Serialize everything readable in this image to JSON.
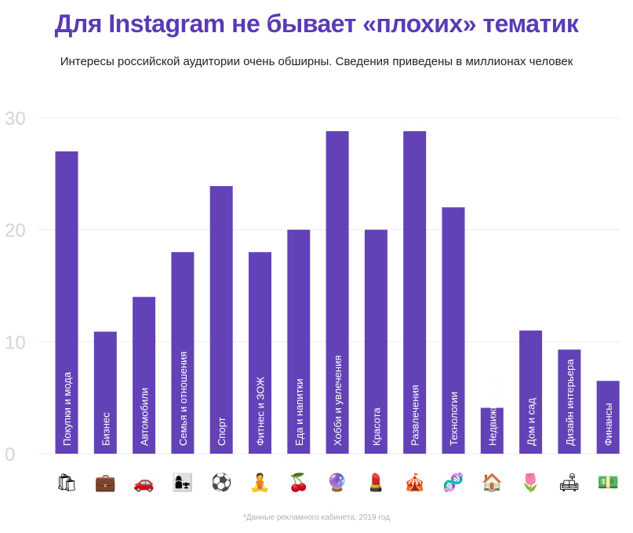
{
  "chart_data": {
    "type": "bar",
    "title": "Для Instagram не бывает «плохих» тематик",
    "subtitle": "Интересы российской аудитории очень обширны. Сведения приведены в миллионах человек",
    "ylim": [
      0,
      30
    ],
    "yticks": [
      0,
      10,
      20,
      30
    ],
    "grid": true,
    "categories": [
      "Покупки и мода",
      "Бизнес",
      "Автомобили",
      "Семья и отношения",
      "Спорт",
      "Фитнес и ЗОЖ",
      "Еда и напитки",
      "Хобби и увлечения",
      "Красота",
      "Развлечения",
      "Технологии",
      "Недвижимость",
      "Дом и сад",
      "Дизайн интерьера",
      "Финансы"
    ],
    "values": [
      27,
      10.9,
      14,
      18,
      23.9,
      18,
      20,
      28.8,
      20,
      28.8,
      22,
      4.1,
      11,
      9.3,
      6.5
    ],
    "icons": [
      "🛍",
      "💼",
      "🚗",
      "👩‍👧",
      "⚽",
      "🧘",
      "🍒",
      "🔮",
      "💄",
      "🎪",
      "🧬",
      "🏠",
      "🌷",
      "🛋",
      "💵"
    ],
    "icon_names": [
      "shopping-bags-icon",
      "briefcase-icon",
      "car-icon",
      "mother-child-icon",
      "soccer-ball-icon",
      "yoga-icon",
      "cherries-icon",
      "crystal-ball-icon",
      "lipstick-icon",
      "circus-tent-icon",
      "dna-icon",
      "house-icon",
      "tulip-icon",
      "sofa-icon",
      "banknote-icon"
    ],
    "bar_color": "#6342b8",
    "footnote": "*Данные рекламного кабинета, 2019 год"
  }
}
